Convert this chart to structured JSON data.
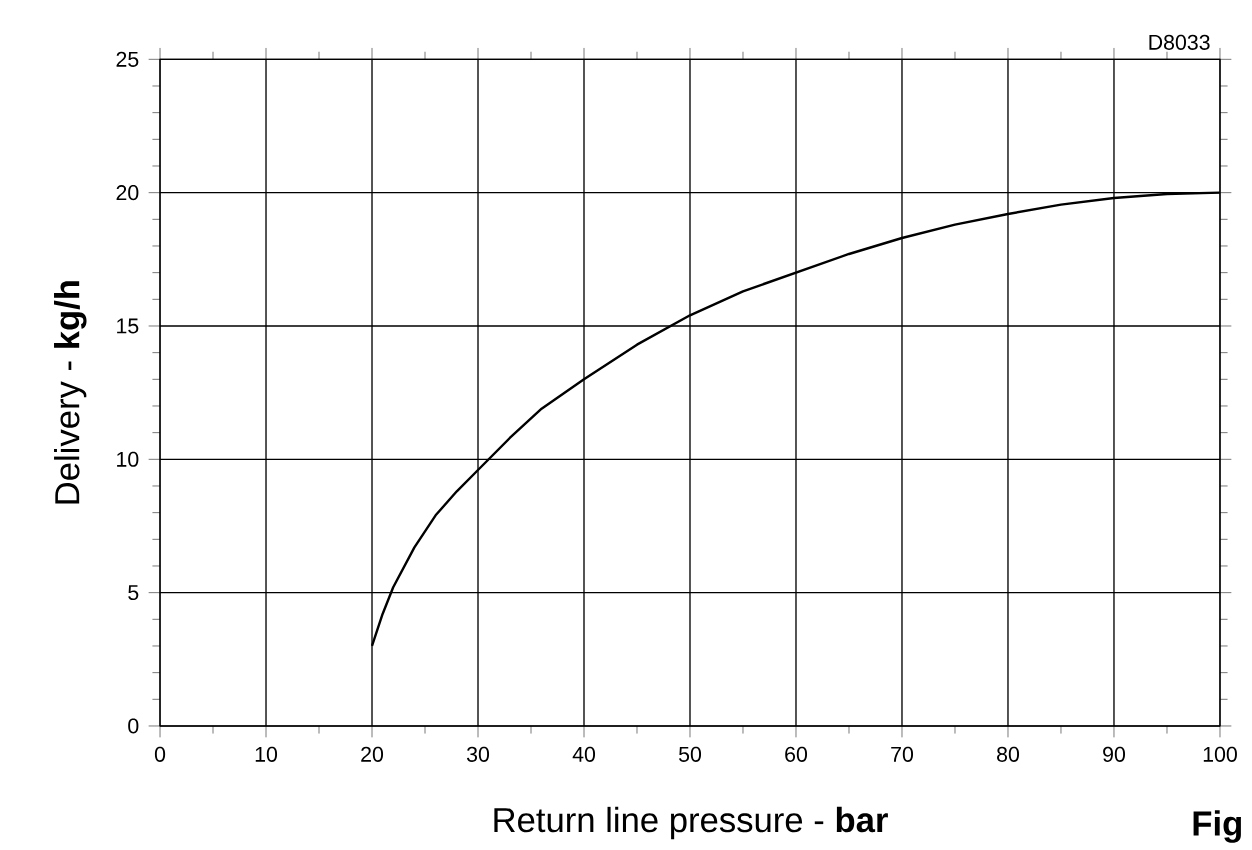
{
  "chart_data": {
    "type": "line",
    "xlabel": "Return line pressure - **bar**",
    "ylabel": "Delivery - **kg/h**",
    "annotations": [
      "D8033",
      "Fig"
    ],
    "x": [
      20,
      21,
      22,
      24,
      26,
      28,
      30,
      33,
      36,
      40,
      45,
      50,
      55,
      60,
      65,
      70,
      75,
      80,
      85,
      90,
      95,
      100
    ],
    "series": [
      {
        "color": "#000000",
        "values": [
          3,
          4.2,
          5.2,
          6.7,
          7.9,
          8.8,
          9.6,
          10.8,
          11.9,
          13,
          14.3,
          15.4,
          16.3,
          17,
          17.7,
          18.3,
          18.8,
          19.2,
          19.55,
          19.8,
          19.95,
          20
        ]
      }
    ],
    "xlim": [
      0,
      100
    ],
    "ylim": [
      0,
      25
    ],
    "xticks": [
      0,
      10,
      20,
      30,
      40,
      50,
      60,
      70,
      80,
      90,
      100
    ],
    "yticks": [
      0,
      5,
      10,
      15,
      20,
      25
    ],
    "grid": true,
    "marker": "none",
    "line_style": "solid"
  }
}
